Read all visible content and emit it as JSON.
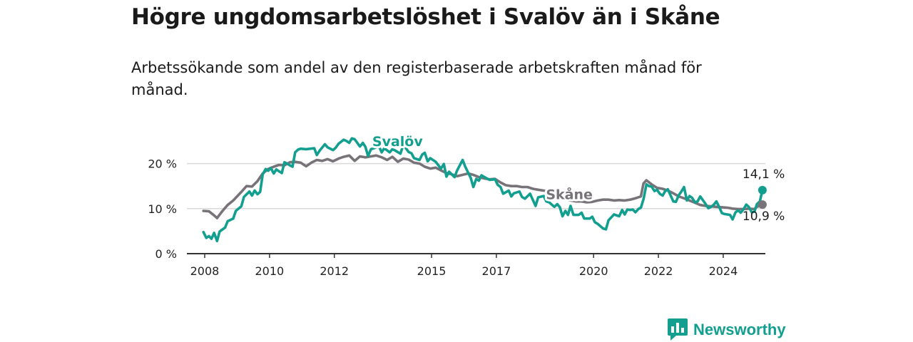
{
  "title": "Högre ungdomsarbetslöshet i Svalöv än i Skåne",
  "subtitle": "Arbetssökande som andel av den registerbaserade arbetskraften månad för månad.",
  "brand": {
    "name": "Newsworthy",
    "logo_icon": "bar-chart-speech-bubble-icon"
  },
  "colors": {
    "svalov": "#139f8f",
    "skane": "#777378",
    "grid": "#d9d9d9",
    "axis": "#333333",
    "brand": "#139f8f"
  },
  "chart_data": {
    "type": "line",
    "title": "Högre ungdomsarbetslöshet i Svalöv än i Skåne",
    "xlabel": "",
    "ylabel": "",
    "xlim": [
      2007.5,
      2025.3
    ],
    "ylim": [
      0,
      25
    ],
    "grid": true,
    "y_ticks": [
      0,
      10,
      20
    ],
    "y_tick_labels": [
      "0 %",
      "10 %",
      "20 %"
    ],
    "x_ticks": [
      2008,
      2010,
      2012,
      2015,
      2017,
      2020,
      2022,
      2024
    ],
    "x_tick_labels": [
      "2008",
      "2010",
      "2012",
      "2015",
      "2017",
      "2020",
      "2022",
      "2024"
    ],
    "series": [
      {
        "name": "Svalöv",
        "label": "Svalöv",
        "color": "#139f8f",
        "end_label": "14,1 %",
        "points": [
          [
            2007.96,
            4.8
          ],
          [
            2008.05,
            3.5
          ],
          [
            2008.13,
            3.9
          ],
          [
            2008.21,
            3.3
          ],
          [
            2008.29,
            4.6
          ],
          [
            2008.38,
            2.8
          ],
          [
            2008.46,
            4.9
          ],
          [
            2008.63,
            5.8
          ],
          [
            2008.71,
            7.2
          ],
          [
            2008.88,
            7.8
          ],
          [
            2008.96,
            9.5
          ],
          [
            2009.13,
            10.5
          ],
          [
            2009.21,
            12.6
          ],
          [
            2009.38,
            13.8
          ],
          [
            2009.46,
            12.9
          ],
          [
            2009.54,
            14.0
          ],
          [
            2009.63,
            13.2
          ],
          [
            2009.71,
            13.7
          ],
          [
            2009.79,
            17.6
          ],
          [
            2009.88,
            18.8
          ],
          [
            2009.96,
            18.4
          ],
          [
            2010.04,
            19.0
          ],
          [
            2010.13,
            17.8
          ],
          [
            2010.21,
            18.7
          ],
          [
            2010.29,
            18.3
          ],
          [
            2010.38,
            17.9
          ],
          [
            2010.46,
            20.3
          ],
          [
            2010.54,
            20.0
          ],
          [
            2010.63,
            19.6
          ],
          [
            2010.71,
            19.3
          ],
          [
            2010.79,
            22.5
          ],
          [
            2010.88,
            23.1
          ],
          [
            2010.96,
            23.3
          ],
          [
            2011.13,
            23.2
          ],
          [
            2011.38,
            23.4
          ],
          [
            2011.46,
            21.9
          ],
          [
            2011.54,
            22.8
          ],
          [
            2011.71,
            24.3
          ],
          [
            2011.79,
            23.6
          ],
          [
            2011.96,
            23.0
          ],
          [
            2012.04,
            23.5
          ],
          [
            2012.13,
            24.4
          ],
          [
            2012.29,
            25.3
          ],
          [
            2012.38,
            25.0
          ],
          [
            2012.46,
            24.6
          ],
          [
            2012.54,
            25.6
          ],
          [
            2012.63,
            25.4
          ],
          [
            2012.79,
            23.8
          ],
          [
            2012.88,
            24.6
          ],
          [
            2012.96,
            23.7
          ],
          [
            2013.04,
            21.7
          ],
          [
            2013.13,
            23.2
          ],
          [
            2013.38,
            23.8
          ],
          [
            2013.46,
            22.5
          ],
          [
            2013.54,
            23.4
          ],
          [
            2013.71,
            22.5
          ],
          [
            2013.79,
            23.2
          ],
          [
            2013.88,
            22.9
          ],
          [
            2014.04,
            22.2
          ],
          [
            2014.13,
            24.2
          ],
          [
            2014.29,
            22.6
          ],
          [
            2014.38,
            22.3
          ],
          [
            2014.46,
            21.2
          ],
          [
            2014.63,
            20.8
          ],
          [
            2014.71,
            22.0
          ],
          [
            2014.79,
            22.4
          ],
          [
            2014.88,
            20.5
          ],
          [
            2014.96,
            21.2
          ],
          [
            2015.13,
            20.4
          ],
          [
            2015.29,
            18.9
          ],
          [
            2015.38,
            19.9
          ],
          [
            2015.46,
            17.1
          ],
          [
            2015.54,
            18.2
          ],
          [
            2015.71,
            17.0
          ],
          [
            2015.79,
            18.5
          ],
          [
            2015.96,
            20.8
          ],
          [
            2016.04,
            19.3
          ],
          [
            2016.21,
            16.8
          ],
          [
            2016.29,
            14.8
          ],
          [
            2016.38,
            16.6
          ],
          [
            2016.46,
            16.2
          ],
          [
            2016.54,
            17.4
          ],
          [
            2016.71,
            16.7
          ],
          [
            2016.79,
            16.4
          ],
          [
            2016.96,
            16.5
          ],
          [
            2017.04,
            15.3
          ],
          [
            2017.13,
            14.8
          ],
          [
            2017.21,
            13.3
          ],
          [
            2017.38,
            14.0
          ],
          [
            2017.46,
            12.7
          ],
          [
            2017.54,
            13.4
          ],
          [
            2017.71,
            13.8
          ],
          [
            2017.79,
            12.6
          ],
          [
            2017.88,
            12.2
          ],
          [
            2018.04,
            13.3
          ],
          [
            2018.21,
            10.6
          ],
          [
            2018.29,
            12.5
          ],
          [
            2018.46,
            12.8
          ],
          [
            2018.54,
            11.6
          ],
          [
            2018.63,
            11.4
          ],
          [
            2018.79,
            10.4
          ],
          [
            2018.88,
            11.0
          ],
          [
            2018.96,
            10.3
          ],
          [
            2019.04,
            8.3
          ],
          [
            2019.13,
            9.5
          ],
          [
            2019.21,
            8.6
          ],
          [
            2019.29,
            10.6
          ],
          [
            2019.38,
            8.6
          ],
          [
            2019.54,
            8.6
          ],
          [
            2019.63,
            9.1
          ],
          [
            2019.71,
            7.8
          ],
          [
            2019.88,
            7.8
          ],
          [
            2019.96,
            8.2
          ],
          [
            2020.04,
            7.0
          ],
          [
            2020.13,
            6.6
          ],
          [
            2020.29,
            5.6
          ],
          [
            2020.38,
            5.4
          ],
          [
            2020.46,
            7.4
          ],
          [
            2020.63,
            8.7
          ],
          [
            2020.79,
            8.3
          ],
          [
            2020.88,
            9.7
          ],
          [
            2020.96,
            8.7
          ],
          [
            2021.04,
            9.8
          ],
          [
            2021.13,
            9.7
          ],
          [
            2021.21,
            9.8
          ],
          [
            2021.29,
            9.2
          ],
          [
            2021.38,
            9.9
          ],
          [
            2021.46,
            10.2
          ],
          [
            2021.54,
            12.1
          ],
          [
            2021.63,
            15.4
          ],
          [
            2021.71,
            15.0
          ],
          [
            2021.79,
            14.9
          ],
          [
            2021.88,
            13.9
          ],
          [
            2021.96,
            14.2
          ],
          [
            2022.04,
            13.3
          ],
          [
            2022.13,
            12.9
          ],
          [
            2022.21,
            13.9
          ],
          [
            2022.29,
            14.3
          ],
          [
            2022.38,
            12.9
          ],
          [
            2022.46,
            11.6
          ],
          [
            2022.54,
            11.5
          ],
          [
            2022.63,
            13.0
          ],
          [
            2022.71,
            13.8
          ],
          [
            2022.79,
            14.8
          ],
          [
            2022.88,
            11.8
          ],
          [
            2022.96,
            12.8
          ],
          [
            2023.04,
            12.4
          ],
          [
            2023.13,
            11.4
          ],
          [
            2023.21,
            11.6
          ],
          [
            2023.29,
            12.7
          ],
          [
            2023.38,
            11.8
          ],
          [
            2023.46,
            11.0
          ],
          [
            2023.54,
            10.1
          ],
          [
            2023.63,
            10.4
          ],
          [
            2023.71,
            10.9
          ],
          [
            2023.79,
            11.6
          ],
          [
            2023.88,
            10.3
          ],
          [
            2023.96,
            9.0
          ],
          [
            2024.04,
            8.8
          ],
          [
            2024.13,
            8.7
          ],
          [
            2024.21,
            8.6
          ],
          [
            2024.29,
            7.6
          ],
          [
            2024.38,
            9.2
          ],
          [
            2024.46,
            9.6
          ],
          [
            2024.54,
            9.1
          ],
          [
            2024.63,
            9.9
          ],
          [
            2024.71,
            10.9
          ],
          [
            2024.79,
            10.4
          ],
          [
            2024.88,
            9.2
          ],
          [
            2024.96,
            9.3
          ],
          [
            2025.04,
            11.0
          ],
          [
            2025.13,
            11.6
          ],
          [
            2025.21,
            14.1
          ]
        ]
      },
      {
        "name": "Skåne",
        "label": "Skåne",
        "color": "#777378",
        "end_label": "10,9 %",
        "points": [
          [
            2007.96,
            9.5
          ],
          [
            2008.13,
            9.4
          ],
          [
            2008.29,
            8.5
          ],
          [
            2008.38,
            7.9
          ],
          [
            2008.54,
            9.4
          ],
          [
            2008.71,
            10.8
          ],
          [
            2008.88,
            11.8
          ],
          [
            2009.13,
            13.7
          ],
          [
            2009.29,
            15.0
          ],
          [
            2009.46,
            14.9
          ],
          [
            2009.63,
            16.1
          ],
          [
            2009.79,
            17.8
          ],
          [
            2009.96,
            18.8
          ],
          [
            2010.13,
            19.3
          ],
          [
            2010.29,
            19.7
          ],
          [
            2010.46,
            19.6
          ],
          [
            2010.63,
            20.3
          ],
          [
            2010.79,
            20.4
          ],
          [
            2010.96,
            20.2
          ],
          [
            2011.13,
            19.4
          ],
          [
            2011.29,
            20.2
          ],
          [
            2011.46,
            20.8
          ],
          [
            2011.63,
            20.6
          ],
          [
            2011.79,
            21.0
          ],
          [
            2011.96,
            20.5
          ],
          [
            2012.13,
            21.1
          ],
          [
            2012.29,
            21.5
          ],
          [
            2012.46,
            21.8
          ],
          [
            2012.63,
            20.6
          ],
          [
            2012.79,
            21.6
          ],
          [
            2012.96,
            21.4
          ],
          [
            2013.13,
            21.6
          ],
          [
            2013.29,
            21.8
          ],
          [
            2013.46,
            21.4
          ],
          [
            2013.63,
            20.8
          ],
          [
            2013.79,
            21.5
          ],
          [
            2013.96,
            20.4
          ],
          [
            2014.13,
            21.1
          ],
          [
            2014.29,
            20.9
          ],
          [
            2014.46,
            20.2
          ],
          [
            2014.63,
            20.0
          ],
          [
            2014.79,
            19.3
          ],
          [
            2014.96,
            18.9
          ],
          [
            2015.13,
            19.1
          ],
          [
            2015.29,
            18.5
          ],
          [
            2015.46,
            17.9
          ],
          [
            2015.63,
            17.6
          ],
          [
            2015.79,
            17.2
          ],
          [
            2015.96,
            17.5
          ],
          [
            2016.13,
            17.8
          ],
          [
            2016.29,
            17.5
          ],
          [
            2016.46,
            17.0
          ],
          [
            2016.63,
            16.7
          ],
          [
            2016.79,
            16.5
          ],
          [
            2016.96,
            16.6
          ],
          [
            2017.13,
            15.8
          ],
          [
            2017.29,
            15.2
          ],
          [
            2017.46,
            15.0
          ],
          [
            2017.63,
            15.0
          ],
          [
            2017.79,
            14.8
          ],
          [
            2017.96,
            14.8
          ],
          [
            2018.13,
            14.4
          ],
          [
            2018.29,
            14.2
          ],
          [
            2018.46,
            14.0
          ],
          [
            2018.63,
            13.8
          ],
          [
            2018.79,
            13.2
          ],
          [
            2018.96,
            12.4
          ],
          [
            2019.13,
            12.0
          ],
          [
            2019.29,
            11.8
          ],
          [
            2019.46,
            11.6
          ],
          [
            2019.63,
            11.6
          ],
          [
            2019.79,
            11.4
          ],
          [
            2019.96,
            11.5
          ],
          [
            2020.13,
            11.8
          ],
          [
            2020.29,
            12.0
          ],
          [
            2020.46,
            12.0
          ],
          [
            2020.63,
            11.8
          ],
          [
            2020.79,
            11.9
          ],
          [
            2020.96,
            11.8
          ],
          [
            2021.13,
            12.0
          ],
          [
            2021.29,
            12.3
          ],
          [
            2021.46,
            12.7
          ],
          [
            2021.54,
            15.6
          ],
          [
            2021.63,
            16.3
          ],
          [
            2021.79,
            15.4
          ],
          [
            2021.96,
            14.6
          ],
          [
            2022.13,
            14.4
          ],
          [
            2022.29,
            14.0
          ],
          [
            2022.46,
            13.4
          ],
          [
            2022.63,
            12.7
          ],
          [
            2022.79,
            12.3
          ],
          [
            2022.96,
            11.8
          ],
          [
            2023.13,
            11.3
          ],
          [
            2023.29,
            10.8
          ],
          [
            2023.46,
            10.6
          ],
          [
            2023.63,
            10.5
          ],
          [
            2023.79,
            10.4
          ],
          [
            2023.96,
            10.3
          ],
          [
            2024.13,
            10.2
          ],
          [
            2024.29,
            10.0
          ],
          [
            2024.46,
            9.9
          ],
          [
            2024.63,
            9.9
          ],
          [
            2024.79,
            10.0
          ],
          [
            2024.96,
            9.9
          ],
          [
            2025.04,
            10.4
          ],
          [
            2025.21,
            10.9
          ]
        ]
      }
    ],
    "series_label_positions": {
      "Svalöv": [
        2013.95,
        23.9
      ],
      "Skåne": [
        2019.25,
        12.1
      ]
    }
  }
}
